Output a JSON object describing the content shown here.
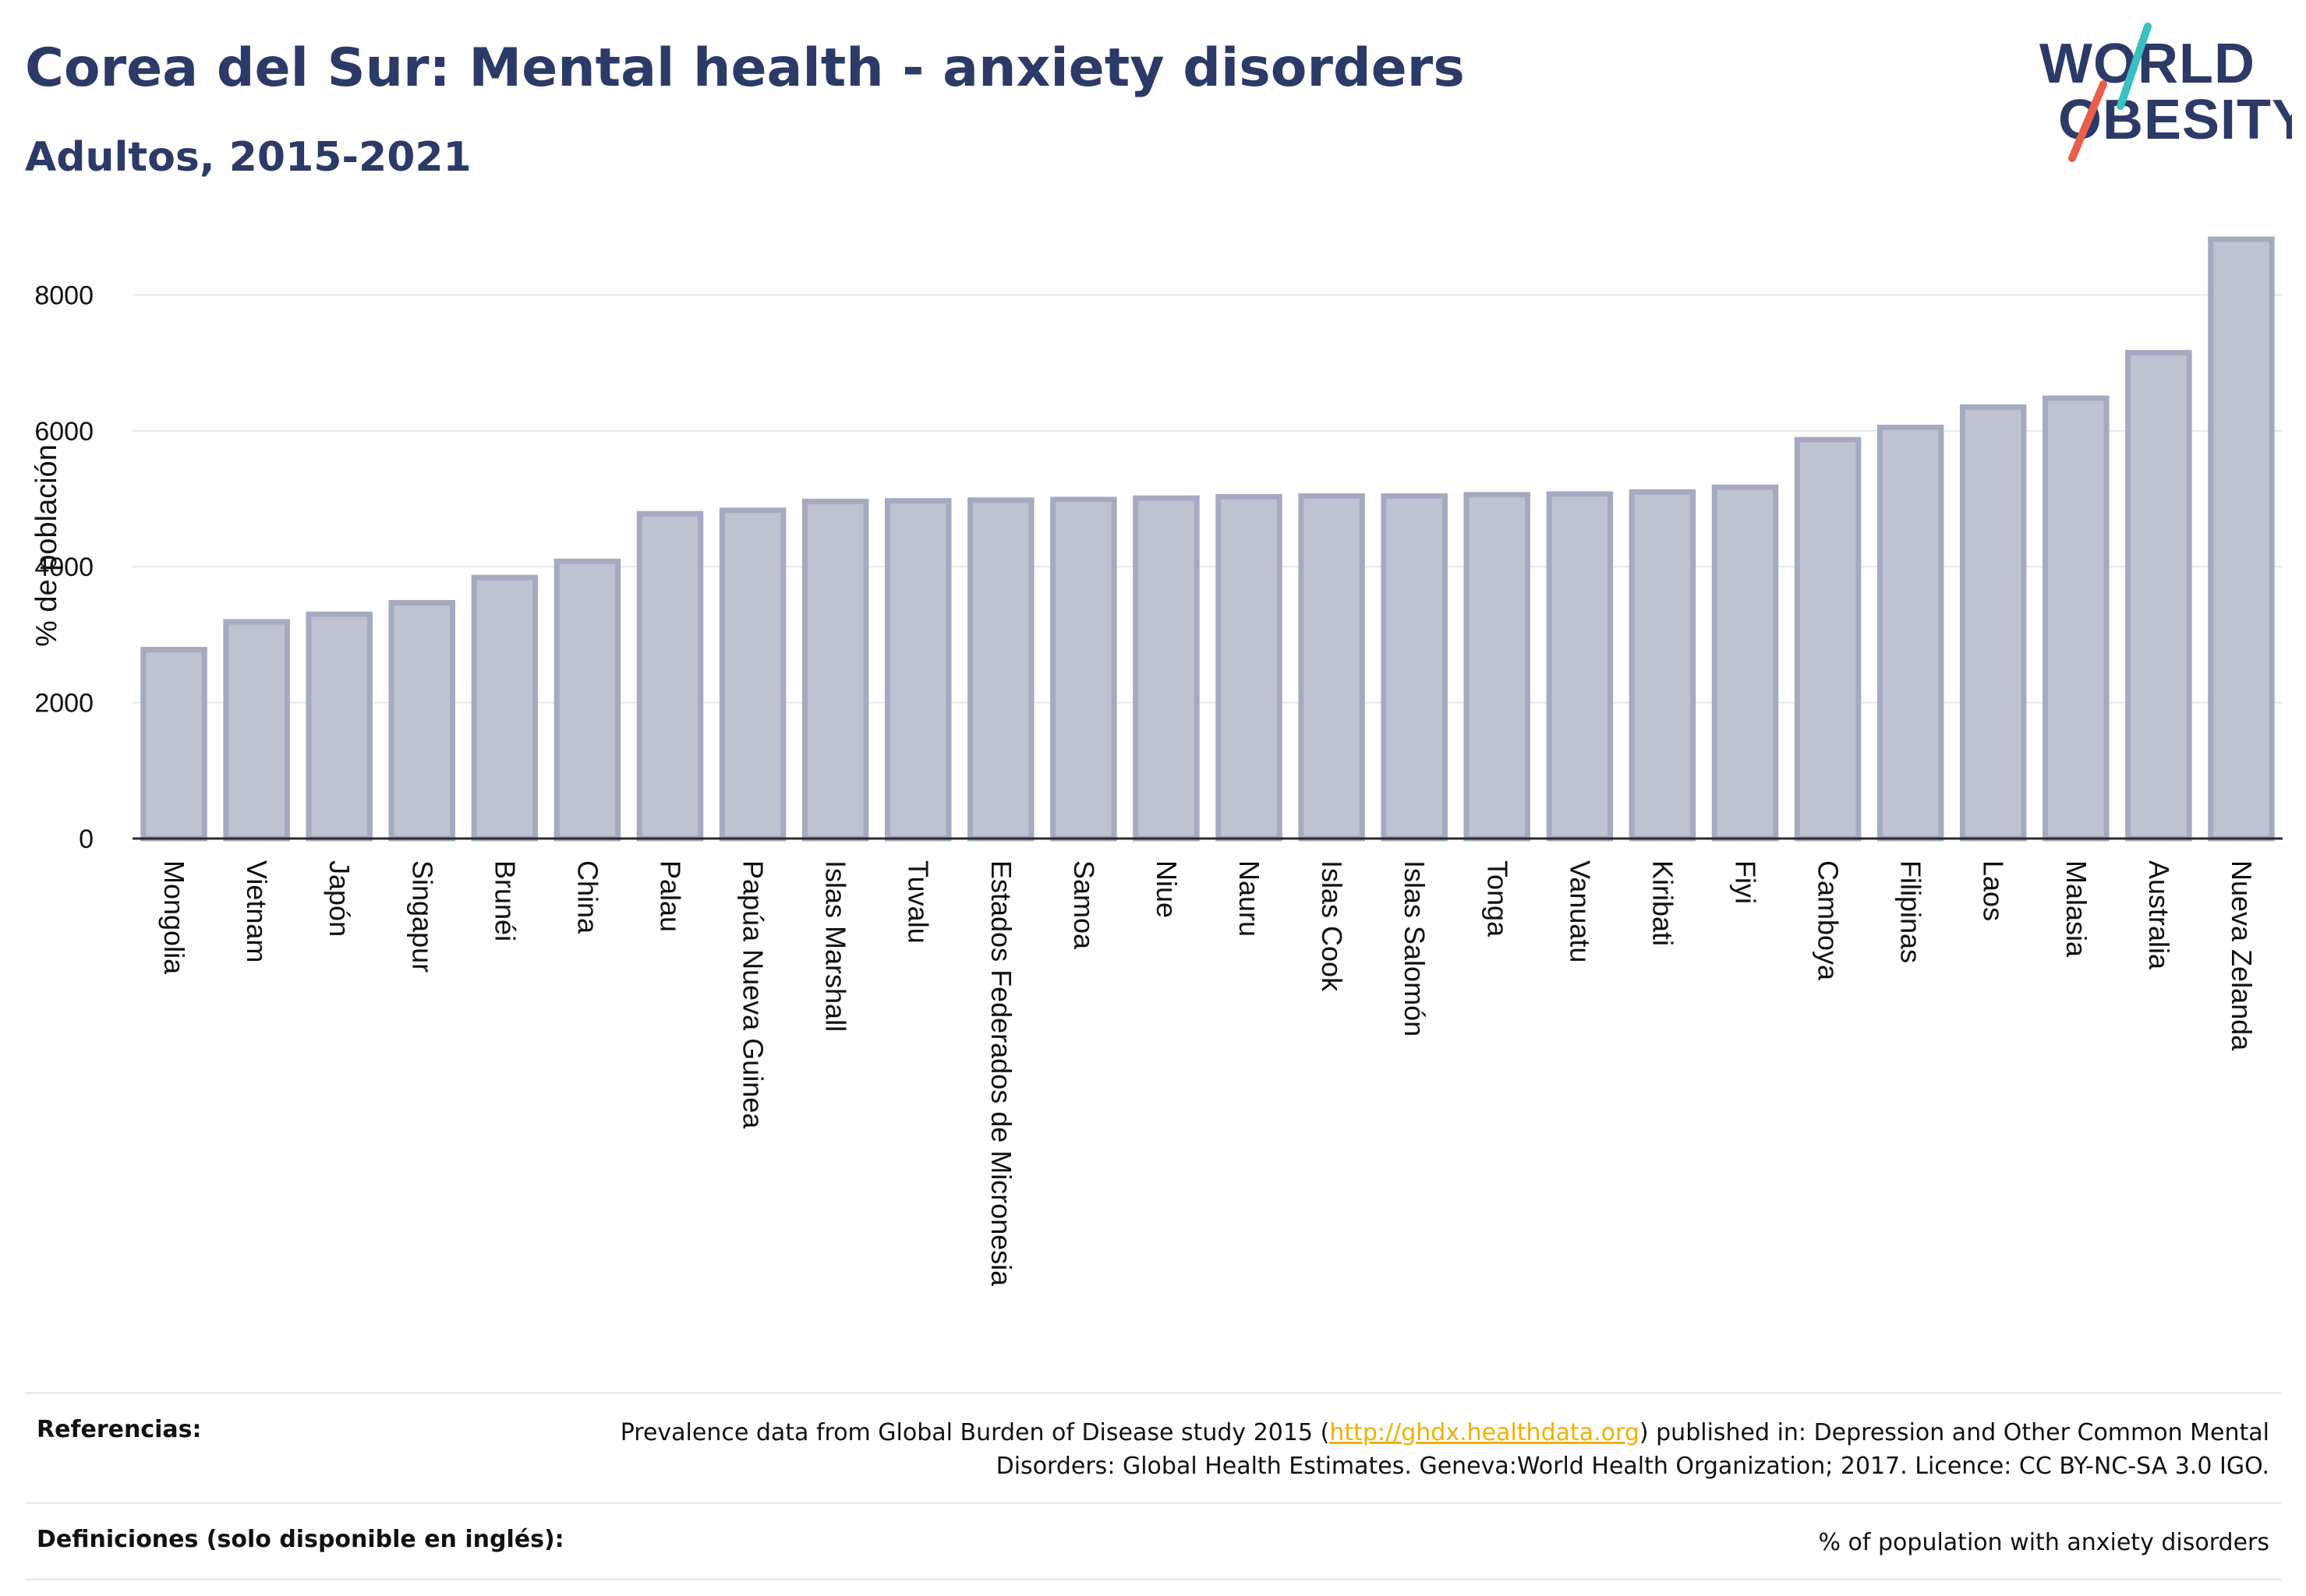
{
  "header": {
    "title": "Corea del Sur: Mental health - anxiety disorders",
    "subtitle": "Adultos, 2015-2021"
  },
  "logo": {
    "line1": "WORLD",
    "line2": "OBESITY",
    "colors": {
      "text": "#2b3a67",
      "slash_teal": "#3bbfc0",
      "slash_red": "#e8604c"
    }
  },
  "chart_data": {
    "type": "bar",
    "ylabel": "% de población",
    "xlabel": "",
    "ylim": [
      0,
      8900
    ],
    "yticks": [
      0,
      2000,
      4000,
      6000,
      8000
    ],
    "grid": true,
    "bar_color": "#bfc3d1",
    "bar_edge_color": "#a4aac0",
    "categories": [
      "Mongolia",
      "Vietnam",
      "Japón",
      "Singapur",
      "Brunéi",
      "China",
      "Palau",
      "Papúa Nueva Guinea",
      "Islas Marshall",
      "Tuvalu",
      "Estados Federados de Micronesia",
      "Samoa",
      "Niue",
      "Nauru",
      "Islas Cook",
      "Islas Salomón",
      "Tonga",
      "Vanuatu",
      "Kiribati",
      "Fiyi",
      "Camboya",
      "Filipinas",
      "Laos",
      "Malasia",
      "Australia",
      "Nueva Zelanda"
    ],
    "values": [
      2780,
      3190,
      3300,
      3470,
      3840,
      4080,
      4780,
      4830,
      4960,
      4970,
      4980,
      4990,
      5010,
      5030,
      5040,
      5040,
      5060,
      5070,
      5100,
      5170,
      5870,
      6050,
      6350,
      6480,
      7150,
      8820
    ]
  },
  "footer": {
    "references_label": "Referencias:",
    "references_pre": "Prevalence data from Global Burden of Disease study 2015 (",
    "references_link": "http://ghdx.healthdata.org",
    "references_post": ") published in: Depression and Other Common Mental Disorders: Global Health Estimates. Geneva:World Health Organization; 2017. Licence: CC BY-NC-SA 3.0 IGO.",
    "definitions_label": "Definiciones (solo disponible en inglés):",
    "definitions_text": "% of population with anxiety disorders"
  }
}
